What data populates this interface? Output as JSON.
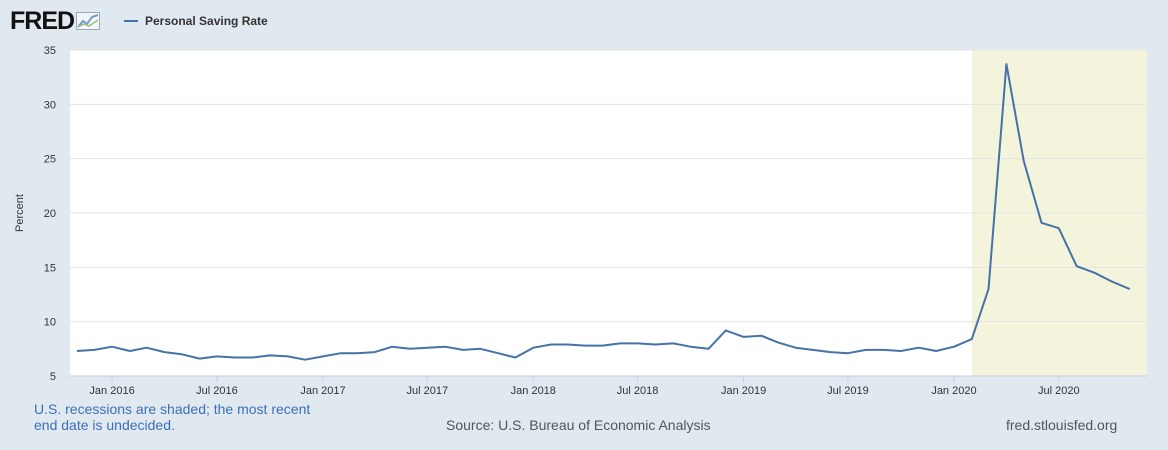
{
  "brand": {
    "logo_text": "FRED",
    "logo_icon": "chart-trend-icon"
  },
  "chart_data": {
    "type": "line",
    "series": [
      {
        "name": "Personal Saving Rate",
        "color": "#4572a7",
        "x": [
          "2015-11",
          "2015-12",
          "2016-01",
          "2016-02",
          "2016-03",
          "2016-04",
          "2016-05",
          "2016-06",
          "2016-07",
          "2016-08",
          "2016-09",
          "2016-10",
          "2016-11",
          "2016-12",
          "2017-01",
          "2017-02",
          "2017-03",
          "2017-04",
          "2017-05",
          "2017-06",
          "2017-07",
          "2017-08",
          "2017-09",
          "2017-10",
          "2017-11",
          "2017-12",
          "2018-01",
          "2018-02",
          "2018-03",
          "2018-04",
          "2018-05",
          "2018-06",
          "2018-07",
          "2018-08",
          "2018-09",
          "2018-10",
          "2018-11",
          "2018-12",
          "2019-01",
          "2019-02",
          "2019-03",
          "2019-04",
          "2019-05",
          "2019-06",
          "2019-07",
          "2019-08",
          "2019-09",
          "2019-10",
          "2019-11",
          "2019-12",
          "2020-01",
          "2020-02",
          "2020-03",
          "2020-04",
          "2020-05",
          "2020-06",
          "2020-07",
          "2020-08",
          "2020-09",
          "2020-10",
          "2020-11"
        ],
        "values": [
          7.3,
          7.4,
          7.7,
          7.3,
          7.6,
          7.2,
          7.0,
          6.6,
          6.8,
          6.7,
          6.7,
          6.9,
          6.8,
          6.5,
          6.8,
          7.1,
          7.1,
          7.2,
          7.7,
          7.5,
          7.6,
          7.7,
          7.4,
          7.5,
          7.1,
          6.7,
          7.6,
          7.9,
          7.9,
          7.8,
          7.8,
          8.0,
          8.0,
          7.9,
          8.0,
          7.7,
          7.5,
          9.2,
          8.6,
          8.7,
          8.1,
          7.6,
          7.4,
          7.2,
          7.1,
          7.4,
          7.4,
          7.3,
          7.6,
          7.3,
          7.7,
          8.4,
          13.0,
          33.7,
          24.8,
          19.1,
          18.6,
          15.1,
          14.5,
          13.7,
          13.0
        ]
      }
    ],
    "ylabel": "Percent",
    "ylim": [
      5,
      35
    ],
    "yticks": [
      5,
      10,
      15,
      20,
      25,
      30,
      35
    ],
    "xlim": [
      "2015-10-20",
      "2020-12-01"
    ],
    "xticks": [
      {
        "date": "2016-01-01",
        "label": "Jan 2016"
      },
      {
        "date": "2016-07-01",
        "label": "Jul 2016"
      },
      {
        "date": "2017-01-01",
        "label": "Jan 2017"
      },
      {
        "date": "2017-07-01",
        "label": "Jul 2017"
      },
      {
        "date": "2018-01-01",
        "label": "Jan 2018"
      },
      {
        "date": "2018-07-01",
        "label": "Jul 2018"
      },
      {
        "date": "2019-01-01",
        "label": "Jan 2019"
      },
      {
        "date": "2019-07-01",
        "label": "Jul 2019"
      },
      {
        "date": "2020-01-01",
        "label": "Jan 2020"
      },
      {
        "date": "2020-07-01",
        "label": "Jul 2020"
      }
    ],
    "recession": {
      "start": "2020-02-01",
      "end": "2020-12-01",
      "color": "#f4f4dc"
    },
    "grid": true,
    "legend_position": "top-left"
  },
  "footer": {
    "recession_note_line1": "U.S. recessions are shaded; the most recent",
    "recession_note_line2": "end date is undecided.",
    "source": "Source: U.S. Bureau of Economic Analysis",
    "site": "fred.stlouisfed.org"
  }
}
